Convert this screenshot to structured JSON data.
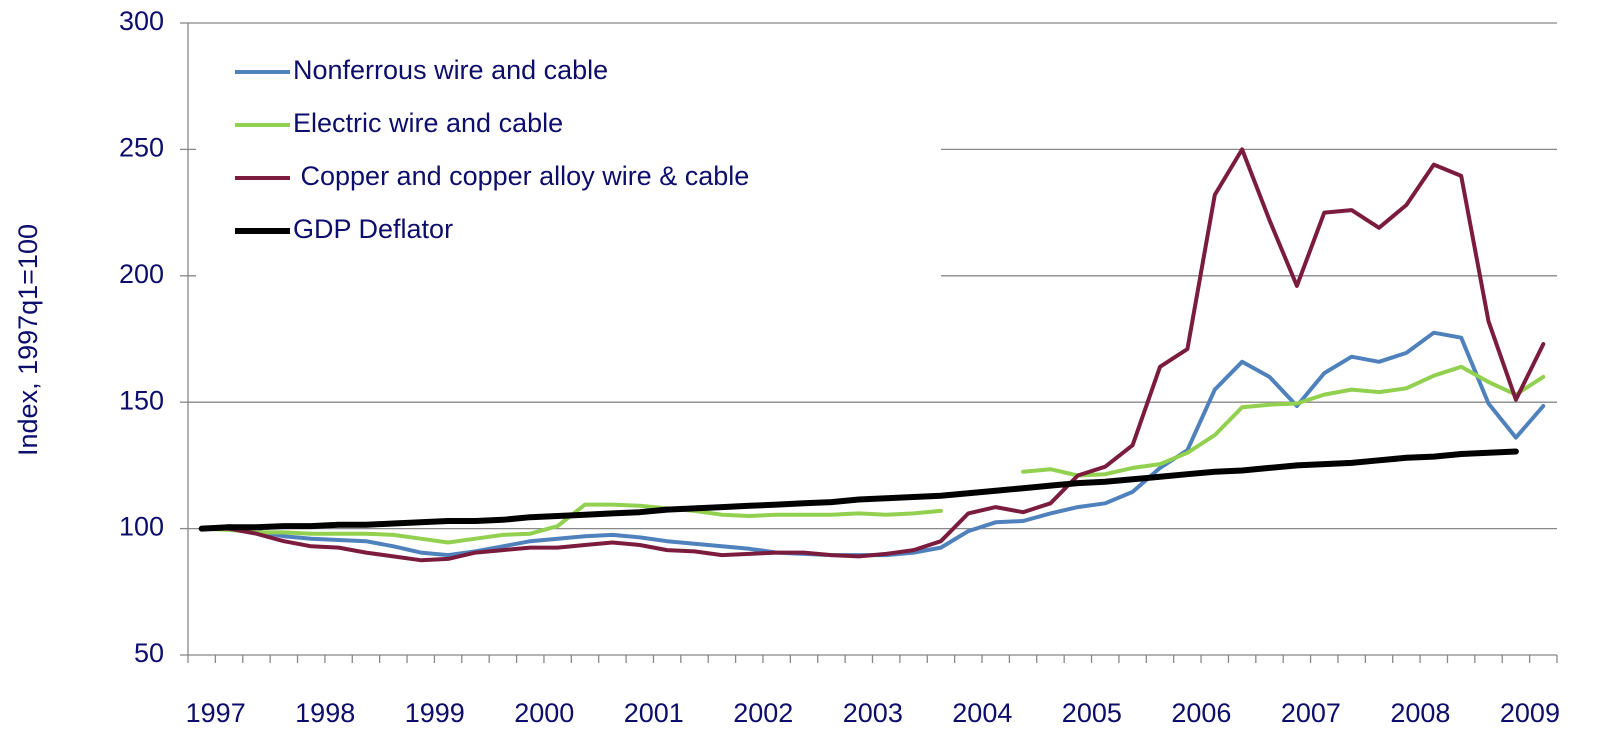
{
  "chart_data": {
    "type": "line",
    "y_label": "Index, 1997q1=100",
    "categories": [
      "1997",
      null,
      null,
      null,
      "1998",
      null,
      null,
      null,
      "1999",
      null,
      null,
      null,
      "2000",
      null,
      null,
      null,
      "2001",
      null,
      null,
      null,
      "2002",
      null,
      null,
      null,
      "2003",
      null,
      null,
      null,
      "2004",
      null,
      null,
      null,
      "2005",
      null,
      null,
      null,
      "2006",
      null,
      null,
      null,
      "2007",
      null,
      null,
      null,
      "2008",
      null,
      null,
      null,
      "2009",
      null
    ],
    "ylim": [
      50,
      300
    ],
    "yticks": [
      50,
      100,
      150,
      200,
      250,
      300
    ],
    "grid": true,
    "legend": "upper left",
    "series": [
      {
        "name": "Nonferrous wire and cable",
        "color": "#4f81bd",
        "values": [
          100,
          101,
          99,
          97,
          96,
          95.5,
          95,
          93,
          90.5,
          89.5,
          91,
          93,
          95,
          96,
          97,
          97.5,
          96.5,
          95,
          94,
          93,
          92,
          90.5,
          90,
          89.5,
          89.5,
          89.5,
          90.5,
          92.5,
          99,
          102.5,
          103,
          106,
          108.5,
          110,
          114.5,
          124,
          131,
          155,
          166,
          160,
          148.5,
          161.5,
          168,
          166,
          169.5,
          177.5,
          175.5,
          149.5,
          136,
          148.5
        ]
      },
      {
        "name": "Electric wire and cable",
        "color": "#92d050",
        "values": [
          100,
          99.5,
          98.5,
          98.5,
          98,
          98,
          98,
          97.5,
          96,
          94.5,
          96,
          97.5,
          98,
          101,
          109.5,
          109.5,
          109,
          108,
          107,
          105.5,
          105,
          105.5,
          105.5,
          105.5,
          106,
          105.5,
          106,
          107,
          null,
          null,
          122.5,
          123.5,
          121,
          121.5,
          124,
          125.5,
          130,
          137,
          148,
          149,
          149.5,
          153,
          155,
          154,
          155.5,
          160.5,
          164,
          158,
          153,
          160
        ]
      },
      {
        "name": " Copper and copper alloy wire & cable",
        "color": "#7b1c3e",
        "values": [
          100,
          100,
          98,
          95,
          93,
          92.5,
          90.5,
          89,
          87.5,
          88,
          90.5,
          91.5,
          92.5,
          92.5,
          93.5,
          94.5,
          93.5,
          91.5,
          91,
          89.5,
          90,
          90.5,
          90.5,
          89.5,
          89,
          90,
          91.5,
          95,
          106,
          108.5,
          106.5,
          110,
          121,
          124.5,
          133,
          164,
          171,
          232,
          250,
          222,
          196,
          225,
          226,
          219,
          228,
          244,
          239.5,
          182,
          151,
          173
        ]
      },
      {
        "name": "GDP Deflator",
        "color": "#000000",
        "values": [
          100,
          100.5,
          100.5,
          101,
          101,
          101.5,
          101.5,
          102,
          102.5,
          103,
          103,
          103.5,
          104.5,
          105,
          105.5,
          106,
          106.5,
          107.5,
          108,
          108.5,
          109,
          109.5,
          110,
          110.5,
          111.5,
          112,
          112.5,
          113,
          114,
          115,
          116,
          117,
          118,
          118.5,
          119.5,
          120.5,
          121.5,
          122.5,
          123,
          124,
          125,
          125.5,
          126,
          127,
          128,
          128.5,
          129.5,
          130,
          130.5,
          null
        ]
      }
    ]
  }
}
